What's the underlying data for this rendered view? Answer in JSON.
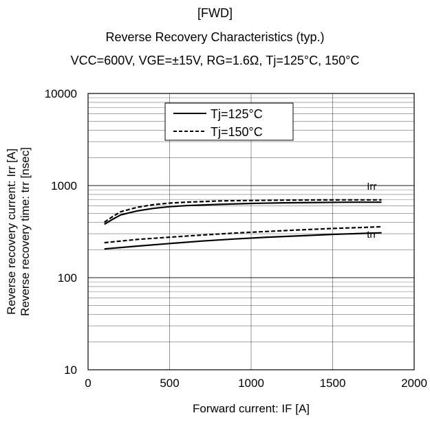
{
  "chart_data": {
    "type": "line",
    "titles": [
      "[FWD]",
      "Reverse Recovery Characteristics (typ.)",
      "VCC=600V, VGE=±15V, RG=1.6Ω, Tj=125°C, 150°C"
    ],
    "xlabel": "Forward current: IF [A]",
    "ylabel_lines": [
      "Reverse recovery current: Irr [A]",
      "Reverse recovery time: trr [nsec]"
    ],
    "xlim": [
      0,
      2000
    ],
    "ylim": [
      10,
      10000
    ],
    "y_scale": "log",
    "x_ticks": [
      "0",
      "500",
      "1000",
      "1500",
      "2000"
    ],
    "y_ticks": [
      "10",
      "100",
      "1000",
      "10000"
    ],
    "grid": true,
    "legend": {
      "placement": "top-center",
      "entries": [
        {
          "label": "Tj=125°C",
          "style": "solid"
        },
        {
          "label": "Tj=150°C",
          "style": "dashed"
        }
      ]
    },
    "annotations": [
      {
        "text": "Irr",
        "x": 1710,
        "y": 900
      },
      {
        "text": "trr",
        "x": 1710,
        "y": 270
      }
    ],
    "series": [
      {
        "group": "Irr",
        "temp": "125",
        "style": "solid",
        "x": [
          100,
          150,
          200,
          300,
          400,
          500,
          600,
          800,
          1000,
          1200,
          1400,
          1600,
          1800
        ],
        "y": [
          380,
          430,
          480,
          530,
          565,
          590,
          605,
          625,
          640,
          650,
          655,
          660,
          660
        ]
      },
      {
        "group": "Irr",
        "temp": "150",
        "style": "dashed",
        "x": [
          100,
          150,
          200,
          300,
          400,
          500,
          600,
          800,
          1000,
          1200,
          1400,
          1600,
          1800
        ],
        "y": [
          400,
          460,
          520,
          580,
          620,
          645,
          660,
          680,
          690,
          695,
          698,
          700,
          700
        ]
      },
      {
        "group": "trr",
        "temp": "125",
        "style": "solid",
        "x": [
          100,
          300,
          500,
          700,
          900,
          1100,
          1300,
          1500,
          1700,
          1800
        ],
        "y": [
          205,
          220,
          235,
          250,
          263,
          275,
          285,
          295,
          303,
          307
        ]
      },
      {
        "group": "trr",
        "temp": "150",
        "style": "dashed",
        "x": [
          100,
          300,
          500,
          700,
          900,
          1100,
          1300,
          1500,
          1700,
          1800
        ],
        "y": [
          240,
          260,
          275,
          290,
          305,
          318,
          330,
          342,
          352,
          357
        ]
      }
    ]
  }
}
